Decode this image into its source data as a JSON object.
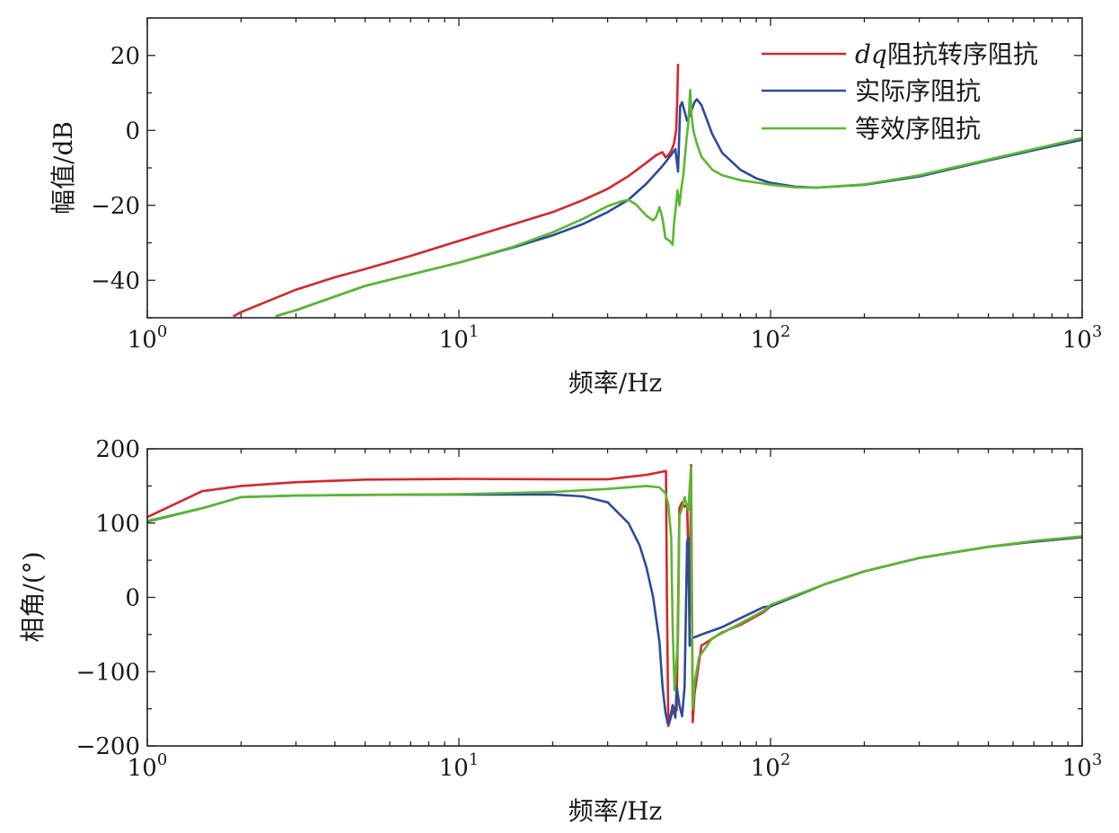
{
  "chart_data": [
    {
      "type": "line",
      "xscale": "log",
      "xlim": [
        1,
        1000
      ],
      "ylim": [
        -50,
        30
      ],
      "yticks": [
        20,
        0,
        -20,
        -40
      ],
      "ytick_labels": [
        "20",
        "0",
        "−20",
        "−40"
      ],
      "xtick_labels": [
        {
          "base": "10",
          "exp": "0"
        },
        {
          "base": "10",
          "exp": "1"
        },
        {
          "base": "10",
          "exp": "2"
        },
        {
          "base": "10",
          "exp": "3"
        }
      ],
      "xlabel": "频率/Hz",
      "ylabel": "幅值/dB",
      "legend": "top-right",
      "grid": false,
      "series": [
        {
          "name": "dq阻抗转序阻抗",
          "name_italic": "dq",
          "name_rest": "阻抗转序阻抗",
          "color": "#d62728",
          "points": [
            [
              1.9,
              -49.5
            ],
            [
              2,
              -48.5
            ],
            [
              3,
              -42.5
            ],
            [
              4,
              -39.2
            ],
            [
              5,
              -37.0
            ],
            [
              7,
              -33.5
            ],
            [
              10,
              -29.5
            ],
            [
              15,
              -25.0
            ],
            [
              20,
              -21.8
            ],
            [
              25,
              -18.6
            ],
            [
              30,
              -15.6
            ],
            [
              35,
              -12.2
            ],
            [
              40,
              -8.6
            ],
            [
              43,
              -6.6
            ],
            [
              45,
              -5.8
            ],
            [
              46,
              -7.2
            ],
            [
              47,
              -6.6
            ],
            [
              48,
              -5.5
            ],
            [
              49,
              -3.5
            ],
            [
              49.8,
              0
            ],
            [
              50.2,
              8
            ],
            [
              50.5,
              17.5
            ]
          ]
        },
        {
          "name": "实际序阻抗",
          "color": "#2e4a9e",
          "points": [
            [
              2.6,
              -49.5
            ],
            [
              3,
              -48.0
            ],
            [
              5,
              -41.5
            ],
            [
              10,
              -35.3
            ],
            [
              15,
              -31.2
            ],
            [
              20,
              -28.0
            ],
            [
              25,
              -25.0
            ],
            [
              30,
              -21.8
            ],
            [
              35,
              -18.5
            ],
            [
              40,
              -14.2
            ],
            [
              45,
              -9.5
            ],
            [
              48,
              -6.5
            ],
            [
              49.5,
              -5.0
            ],
            [
              50.5,
              -11.0
            ],
            [
              51.3,
              6.5
            ],
            [
              52,
              7.5
            ],
            [
              53,
              5.0
            ],
            [
              54,
              2.5
            ],
            [
              55,
              4.0
            ],
            [
              57,
              7.5
            ],
            [
              58,
              8.3
            ],
            [
              60,
              6.8
            ],
            [
              65,
              -1
            ],
            [
              70,
              -6
            ],
            [
              80,
              -10.5
            ],
            [
              90,
              -12.8
            ],
            [
              100,
              -14.0
            ],
            [
              120,
              -15.0
            ],
            [
              140,
              -15.3
            ],
            [
              200,
              -14.5
            ],
            [
              300,
              -12.3
            ],
            [
              500,
              -8.0
            ],
            [
              700,
              -5.3
            ],
            [
              1000,
              -2.5
            ]
          ]
        },
        {
          "name": "等效序阻抗",
          "color": "#5ab82f",
          "points": [
            [
              2.6,
              -49.5
            ],
            [
              3,
              -48.0
            ],
            [
              5,
              -41.5
            ],
            [
              10,
              -35.3
            ],
            [
              15,
              -31.0
            ],
            [
              20,
              -27.2
            ],
            [
              25,
              -23.6
            ],
            [
              30,
              -20.2
            ],
            [
              33,
              -19.0
            ],
            [
              35,
              -18.5
            ],
            [
              37,
              -19.8
            ],
            [
              40,
              -22.8
            ],
            [
              42,
              -24.0
            ],
            [
              43,
              -23.0
            ],
            [
              44,
              -20.5
            ],
            [
              45,
              -23.5
            ],
            [
              46,
              -28.8
            ],
            [
              47.5,
              -29.5
            ],
            [
              48.5,
              -30.5
            ],
            [
              49,
              -25
            ],
            [
              49.6,
              -21
            ],
            [
              50.3,
              -16
            ],
            [
              51,
              -20
            ],
            [
              51.8,
              -15
            ],
            [
              52.5,
              -12
            ],
            [
              53,
              -8
            ],
            [
              53.8,
              -2
            ],
            [
              54.5,
              2
            ],
            [
              55.2,
              10.8
            ],
            [
              55.8,
              4
            ],
            [
              56.5,
              0
            ],
            [
              58,
              -3.5
            ],
            [
              60,
              -7
            ],
            [
              65,
              -10.5
            ],
            [
              70,
              -12.0
            ],
            [
              80,
              -13.3
            ],
            [
              95,
              -14.2
            ],
            [
              100,
              -14.5
            ],
            [
              120,
              -15.2
            ],
            [
              140,
              -15.3
            ],
            [
              200,
              -14.4
            ],
            [
              300,
              -12.0
            ],
            [
              500,
              -7.8
            ],
            [
              700,
              -5.0
            ],
            [
              1000,
              -2.0
            ]
          ]
        }
      ]
    },
    {
      "type": "line",
      "xscale": "log",
      "xlim": [
        1,
        1000
      ],
      "ylim": [
        -200,
        200
      ],
      "yticks": [
        200,
        100,
        0,
        -100,
        -200
      ],
      "ytick_labels": [
        "200",
        "100",
        "0",
        "−100",
        "−200"
      ],
      "xtick_labels": [
        {
          "base": "10",
          "exp": "0"
        },
        {
          "base": "10",
          "exp": "1"
        },
        {
          "base": "10",
          "exp": "2"
        },
        {
          "base": "10",
          "exp": "3"
        }
      ],
      "xlabel": "频率/Hz",
      "ylabel": "相角/(°)",
      "grid": false,
      "series": [
        {
          "name": "dq阻抗转序阻抗",
          "color": "#d62728",
          "points": [
            [
              1,
              108
            ],
            [
              1.5,
              143
            ],
            [
              2,
              150
            ],
            [
              3,
              155
            ],
            [
              5,
              158.5
            ],
            [
              10,
              159.5
            ],
            [
              20,
              159
            ],
            [
              30,
              159
            ],
            [
              40,
              165
            ],
            [
              46,
              170
            ],
            [
              46.2,
              170
            ],
            [
              46.5,
              0
            ],
            [
              47,
              -173
            ],
            [
              48,
              -160
            ],
            [
              49,
              -148
            ],
            [
              50,
              -152
            ],
            [
              51,
              120
            ],
            [
              52,
              128
            ],
            [
              53,
              122
            ],
            [
              54,
              125
            ],
            [
              55,
              -25
            ],
            [
              55.6,
              178
            ],
            [
              56.3,
              -168
            ],
            [
              57,
              -130
            ],
            [
              60,
              -65
            ],
            [
              70,
              -47
            ],
            [
              80,
              -37
            ],
            [
              95,
              -20
            ],
            [
              100,
              -12
            ],
            [
              150,
              18
            ],
            [
              200,
              35
            ],
            [
              300,
              53
            ],
            [
              500,
              68
            ],
            [
              700,
              75
            ],
            [
              1000,
              81
            ]
          ]
        },
        {
          "name": "实际序阻抗",
          "color": "#2e4a9e",
          "points": [
            [
              1,
              102
            ],
            [
              1.5,
              120
            ],
            [
              2,
              135
            ],
            [
              3,
              137
            ],
            [
              5,
              138
            ],
            [
              10,
              138.5
            ],
            [
              20,
              138.5
            ],
            [
              25,
              136
            ],
            [
              30,
              128
            ],
            [
              35,
              100
            ],
            [
              38,
              70
            ],
            [
              40,
              40
            ],
            [
              42,
              0
            ],
            [
              44,
              -60
            ],
            [
              45,
              -120
            ],
            [
              46,
              -155
            ],
            [
              46.8,
              -170
            ],
            [
              47.5,
              -165
            ],
            [
              48.5,
              -145
            ],
            [
              49.5,
              -162
            ],
            [
              50,
              -120
            ],
            [
              51,
              -145
            ],
            [
              52,
              -160
            ],
            [
              53,
              -120
            ],
            [
              54,
              75
            ],
            [
              54.5,
              80
            ],
            [
              55,
              -65
            ],
            [
              56,
              -55
            ],
            [
              60,
              -50
            ],
            [
              70,
              -40
            ],
            [
              80,
              -28
            ],
            [
              95,
              -13
            ],
            [
              100,
              -12
            ],
            [
              150,
              18
            ],
            [
              200,
              35
            ],
            [
              300,
              53
            ],
            [
              500,
              68
            ],
            [
              700,
              75
            ],
            [
              1000,
              81
            ]
          ]
        },
        {
          "name": "等效序阻抗",
          "color": "#5ab82f",
          "points": [
            [
              1,
              103
            ],
            [
              1.5,
              120
            ],
            [
              2,
              135
            ],
            [
              3,
              137
            ],
            [
              5,
              138
            ],
            [
              10,
              139
            ],
            [
              20,
              142
            ],
            [
              30,
              146
            ],
            [
              40,
              150
            ],
            [
              44,
              148
            ],
            [
              46,
              140
            ],
            [
              47,
              125
            ],
            [
              48,
              80
            ],
            [
              48.5,
              -40
            ],
            [
              49.2,
              -125
            ],
            [
              50.5,
              -55
            ],
            [
              51,
              110
            ],
            [
              52,
              120
            ],
            [
              53,
              135
            ],
            [
              53.5,
              128
            ],
            [
              54.5,
              118
            ],
            [
              55.5,
              175
            ],
            [
              56.2,
              -150
            ],
            [
              57,
              -115
            ],
            [
              59,
              -80
            ],
            [
              65,
              -55
            ],
            [
              70,
              -48
            ],
            [
              80,
              -35
            ],
            [
              95,
              -18
            ],
            [
              100,
              -10
            ],
            [
              150,
              18
            ],
            [
              200,
              35
            ],
            [
              300,
              53
            ],
            [
              500,
              68
            ],
            [
              700,
              76
            ],
            [
              1000,
              82
            ]
          ]
        }
      ]
    }
  ]
}
